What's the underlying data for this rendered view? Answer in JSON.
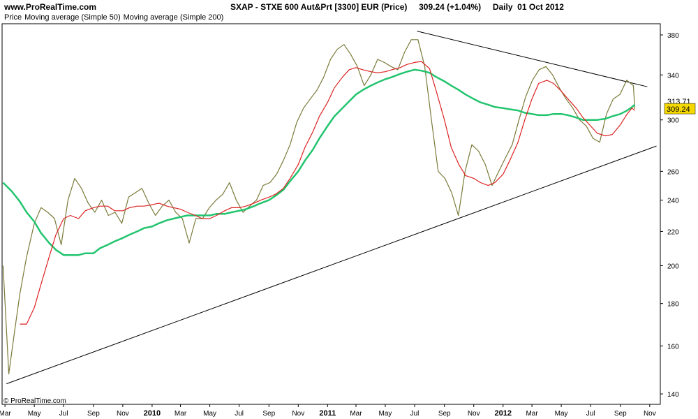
{
  "header": {
    "site": "www.ProRealTime.com",
    "title": "SXAP - STXE 600 Aut&Prt [3300] EUR (Price)",
    "price_change": "309.24 (+1.04%)",
    "period": "Daily  01 Oct 2012"
  },
  "footer": {
    "copyright": "© ProRealTime.com"
  },
  "colors": {
    "price": "#7a7a3a",
    "ma50": "#dd2222",
    "ma200": "#22c46e",
    "trend": "#000000",
    "current_bg": "#f5d800"
  },
  "chart_data": {
    "type": "line",
    "title": "SXAP - STXE 600 Aut&Prt [3300] EUR (Price)",
    "y_scale": "log",
    "ylim": [
      136,
      392
    ],
    "y_ticks": [
      140,
      160,
      180,
      200,
      220,
      240,
      260,
      300,
      340,
      380
    ],
    "xlim": [
      "2009-02-23",
      "2012-11-23"
    ],
    "x_ticks": [
      {
        "date": "2009-03-01",
        "label": "Mar",
        "bold": false
      },
      {
        "date": "2009-05-01",
        "label": "May",
        "bold": false
      },
      {
        "date": "2009-07-01",
        "label": "Jul",
        "bold": false
      },
      {
        "date": "2009-09-01",
        "label": "Sep",
        "bold": false
      },
      {
        "date": "2009-11-01",
        "label": "Nov",
        "bold": false
      },
      {
        "date": "2010-01-01",
        "label": "2010",
        "bold": true
      },
      {
        "date": "2010-03-01",
        "label": "Mar",
        "bold": false
      },
      {
        "date": "2010-05-01",
        "label": "May",
        "bold": false
      },
      {
        "date": "2010-07-01",
        "label": "Jul",
        "bold": false
      },
      {
        "date": "2010-09-01",
        "label": "Sep",
        "bold": false
      },
      {
        "date": "2010-11-01",
        "label": "Nov",
        "bold": false
      },
      {
        "date": "2011-01-01",
        "label": "2011",
        "bold": true
      },
      {
        "date": "2011-03-01",
        "label": "Mar",
        "bold": false
      },
      {
        "date": "2011-05-01",
        "label": "May",
        "bold": false
      },
      {
        "date": "2011-07-01",
        "label": "Jul",
        "bold": false
      },
      {
        "date": "2011-09-01",
        "label": "Sep",
        "bold": false
      },
      {
        "date": "2011-11-01",
        "label": "Nov",
        "bold": false
      },
      {
        "date": "2012-01-01",
        "label": "2012",
        "bold": true
      },
      {
        "date": "2012-03-01",
        "label": "Mar",
        "bold": false
      },
      {
        "date": "2012-05-01",
        "label": "May",
        "bold": false
      },
      {
        "date": "2012-07-01",
        "label": "Jul",
        "bold": false
      },
      {
        "date": "2012-09-01",
        "label": "Sep",
        "bold": false
      },
      {
        "date": "2012-11-01",
        "label": "Nov",
        "bold": false
      }
    ],
    "current_value": 309.24,
    "current_label": "309.24",
    "secondary_label": "313.71",
    "legend": [
      {
        "name": "Price",
        "color": "#000000"
      },
      {
        "name": "Moving average (Simple 50)",
        "color": "#dd2222"
      },
      {
        "name": "Moving average (Simple 200)",
        "color": "#22c46e"
      }
    ],
    "series": [
      {
        "name": "Price",
        "x": [
          "2009-02-25",
          "2009-03-09",
          "2009-03-20",
          "2009-04-01",
          "2009-04-15",
          "2009-05-01",
          "2009-05-15",
          "2009-05-29",
          "2009-06-12",
          "2009-06-26",
          "2009-07-10",
          "2009-07-24",
          "2009-08-07",
          "2009-08-21",
          "2009-09-04",
          "2009-09-18",
          "2009-10-02",
          "2009-10-16",
          "2009-10-30",
          "2009-11-13",
          "2009-11-27",
          "2009-12-11",
          "2009-12-25",
          "2010-01-08",
          "2010-01-22",
          "2010-02-05",
          "2010-02-19",
          "2010-03-05",
          "2010-03-19",
          "2010-04-02",
          "2010-04-16",
          "2010-04-30",
          "2010-05-14",
          "2010-05-28",
          "2010-06-11",
          "2010-06-25",
          "2010-07-09",
          "2010-07-23",
          "2010-08-06",
          "2010-08-20",
          "2010-09-03",
          "2010-09-17",
          "2010-10-01",
          "2010-10-15",
          "2010-10-29",
          "2010-11-12",
          "2010-11-26",
          "2010-12-10",
          "2010-12-24",
          "2011-01-07",
          "2011-01-21",
          "2011-02-04",
          "2011-02-18",
          "2011-03-04",
          "2011-03-18",
          "2011-04-01",
          "2011-04-15",
          "2011-04-29",
          "2011-05-13",
          "2011-05-27",
          "2011-06-10",
          "2011-06-24",
          "2011-07-08",
          "2011-07-22",
          "2011-08-05",
          "2011-08-19",
          "2011-09-02",
          "2011-09-16",
          "2011-09-30",
          "2011-10-14",
          "2011-10-28",
          "2011-11-11",
          "2011-11-25",
          "2011-12-09",
          "2011-12-23",
          "2012-01-06",
          "2012-01-20",
          "2012-02-03",
          "2012-02-17",
          "2012-03-02",
          "2012-03-16",
          "2012-03-30",
          "2012-04-13",
          "2012-04-27",
          "2012-05-11",
          "2012-05-25",
          "2012-06-08",
          "2012-06-22",
          "2012-07-06",
          "2012-07-20",
          "2012-08-03",
          "2012-08-17",
          "2012-08-31",
          "2012-09-14",
          "2012-09-28",
          "2012-10-01"
        ],
        "values": [
          200,
          148,
          165,
          185,
          205,
          225,
          235,
          232,
          228,
          212,
          240,
          255,
          248,
          238,
          232,
          240,
          230,
          232,
          225,
          242,
          245,
          248,
          238,
          230,
          236,
          240,
          232,
          228,
          213,
          228,
          228,
          235,
          240,
          244,
          252,
          240,
          232,
          236,
          240,
          250,
          252,
          258,
          268,
          280,
          298,
          310,
          318,
          326,
          338,
          355,
          365,
          370,
          360,
          348,
          330,
          340,
          355,
          352,
          348,
          345,
          362,
          375,
          375,
          348,
          300,
          260,
          255,
          245,
          230,
          260,
          280,
          275,
          265,
          250,
          260,
          270,
          280,
          300,
          320,
          335,
          345,
          348,
          340,
          328,
          318,
          310,
          300,
          295,
          285,
          282,
          305,
          318,
          322,
          335,
          330,
          309.24
        ]
      },
      {
        "name": "Moving average (Simple 50)",
        "x": [
          "2009-04-01",
          "2009-04-15",
          "2009-05-01",
          "2009-05-15",
          "2009-06-01",
          "2009-06-15",
          "2009-07-01",
          "2009-07-15",
          "2009-08-01",
          "2009-08-15",
          "2009-09-01",
          "2009-09-15",
          "2009-10-01",
          "2009-10-15",
          "2009-11-01",
          "2009-11-15",
          "2009-12-01",
          "2009-12-15",
          "2010-01-01",
          "2010-01-15",
          "2010-02-01",
          "2010-02-15",
          "2010-03-01",
          "2010-03-15",
          "2010-04-01",
          "2010-04-15",
          "2010-05-01",
          "2010-05-15",
          "2010-06-01",
          "2010-06-15",
          "2010-07-01",
          "2010-07-15",
          "2010-08-01",
          "2010-08-15",
          "2010-09-01",
          "2010-09-15",
          "2010-10-01",
          "2010-10-15",
          "2010-11-01",
          "2010-11-15",
          "2010-12-01",
          "2010-12-15",
          "2011-01-01",
          "2011-01-15",
          "2011-02-01",
          "2011-02-15",
          "2011-03-01",
          "2011-03-15",
          "2011-04-01",
          "2011-04-15",
          "2011-05-01",
          "2011-05-15",
          "2011-06-01",
          "2011-06-15",
          "2011-07-01",
          "2011-07-15",
          "2011-08-01",
          "2011-08-15",
          "2011-09-01",
          "2011-09-15",
          "2011-10-01",
          "2011-10-15",
          "2011-11-01",
          "2011-11-15",
          "2011-12-01",
          "2011-12-15",
          "2012-01-01",
          "2012-01-15",
          "2012-02-01",
          "2012-02-15",
          "2012-03-01",
          "2012-03-15",
          "2012-04-01",
          "2012-04-15",
          "2012-05-01",
          "2012-05-15",
          "2012-06-01",
          "2012-06-15",
          "2012-07-01",
          "2012-07-15",
          "2012-08-01",
          "2012-08-15",
          "2012-09-01",
          "2012-09-15",
          "2012-09-25",
          "2012-10-01"
        ],
        "values": [
          170,
          170,
          178,
          190,
          205,
          218,
          228,
          230,
          228,
          233,
          235,
          236,
          236,
          233,
          233,
          235,
          236,
          236,
          237,
          238,
          236,
          235,
          234,
          232,
          230,
          228,
          228,
          230,
          233,
          235,
          235,
          236,
          238,
          240,
          242,
          244,
          248,
          255,
          265,
          278,
          290,
          303,
          315,
          328,
          338,
          345,
          347,
          345,
          343,
          342,
          343,
          345,
          347,
          350,
          352,
          353,
          346,
          325,
          300,
          278,
          265,
          257,
          255,
          252,
          250,
          252,
          258,
          268,
          282,
          300,
          318,
          332,
          335,
          332,
          325,
          318,
          310,
          302,
          295,
          289,
          287,
          288,
          296,
          305,
          310,
          308
        ]
      },
      {
        "name": "Moving average (Simple 200)",
        "x": [
          "2009-02-25",
          "2009-03-15",
          "2009-04-01",
          "2009-04-15",
          "2009-05-01",
          "2009-05-15",
          "2009-06-01",
          "2009-06-15",
          "2009-07-01",
          "2009-07-15",
          "2009-08-01",
          "2009-08-15",
          "2009-09-01",
          "2009-09-15",
          "2009-10-01",
          "2009-10-15",
          "2009-11-01",
          "2009-11-15",
          "2009-12-01",
          "2009-12-15",
          "2010-01-01",
          "2010-01-15",
          "2010-02-01",
          "2010-02-15",
          "2010-03-01",
          "2010-03-15",
          "2010-04-01",
          "2010-04-15",
          "2010-05-01",
          "2010-05-15",
          "2010-06-01",
          "2010-06-15",
          "2010-07-01",
          "2010-07-15",
          "2010-08-01",
          "2010-08-15",
          "2010-09-01",
          "2010-09-15",
          "2010-10-01",
          "2010-10-15",
          "2010-11-01",
          "2010-11-15",
          "2010-12-01",
          "2010-12-15",
          "2011-01-01",
          "2011-01-15",
          "2011-02-01",
          "2011-02-15",
          "2011-03-01",
          "2011-03-15",
          "2011-04-01",
          "2011-04-15",
          "2011-05-01",
          "2011-05-15",
          "2011-06-01",
          "2011-06-15",
          "2011-07-01",
          "2011-07-15",
          "2011-08-01",
          "2011-08-15",
          "2011-09-01",
          "2011-09-15",
          "2011-10-01",
          "2011-10-15",
          "2011-11-01",
          "2011-11-15",
          "2011-12-01",
          "2011-12-15",
          "2012-01-01",
          "2012-01-15",
          "2012-02-01",
          "2012-02-15",
          "2012-03-01",
          "2012-03-15",
          "2012-04-01",
          "2012-04-15",
          "2012-05-01",
          "2012-05-15",
          "2012-06-01",
          "2012-06-15",
          "2012-07-01",
          "2012-07-15",
          "2012-08-01",
          "2012-08-15",
          "2012-09-01",
          "2012-09-15",
          "2012-09-25",
          "2012-10-01"
        ],
        "values": [
          252,
          246,
          239,
          232,
          226,
          219,
          213,
          209,
          206,
          206,
          206,
          207,
          207,
          210,
          212,
          214,
          216,
          218,
          220,
          222,
          223,
          225,
          227,
          228,
          229,
          230,
          230,
          230,
          230,
          231,
          231,
          232,
          233,
          234,
          236,
          238,
          240,
          243,
          247,
          253,
          260,
          268,
          276,
          285,
          295,
          303,
          310,
          316,
          322,
          326,
          330,
          333,
          336,
          338,
          341,
          343,
          345,
          344,
          342,
          338,
          334,
          330,
          326,
          322,
          318,
          315,
          313,
          311,
          310,
          309,
          308,
          306,
          305,
          304,
          304,
          305,
          305,
          304,
          302,
          300,
          300,
          300,
          301,
          303,
          305,
          308,
          311,
          313
        ]
      },
      {
        "name": "Support trend line",
        "x": [
          "2009-03-04",
          "2012-11-15"
        ],
        "values": [
          144,
          279
        ]
      },
      {
        "name": "Resistance trend line",
        "x": [
          "2011-07-06",
          "2012-10-27"
        ],
        "values": [
          384,
          329
        ]
      }
    ]
  }
}
